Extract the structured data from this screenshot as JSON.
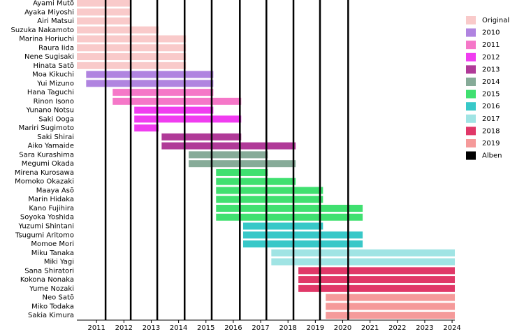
{
  "chart_data": {
    "type": "timeline",
    "xlim": [
      2010.28,
      2024.1
    ],
    "xticks": [
      2011,
      2012,
      2013,
      2014,
      2015,
      2016,
      2017,
      2018,
      2019,
      2020,
      2021,
      2022,
      2023,
      2024
    ],
    "series": [
      {
        "name": "Original",
        "color": "#f9caca",
        "categories": [
          "Ayami Mutō",
          "Ayaka Miyoshi",
          "Airi Matsui",
          "Suzuka Nakamoto",
          "Marina Horiuchi",
          "Raura Iida",
          "Nene Sugisaki",
          "Hinata Satō"
        ],
        "starts": [
          2010.28,
          2010.28,
          2010.28,
          2010.28,
          2010.28,
          2010.28,
          2010.28,
          2010.28
        ],
        "ends": [
          2012.25,
          2012.25,
          2012.25,
          2013.27,
          2014.27,
          2014.27,
          2014.27,
          2014.27
        ]
      },
      {
        "name": "2010",
        "color": "#b084e0",
        "categories": [
          "Moa Kikuchi",
          "Yui Mizuno"
        ],
        "starts": [
          2010.62,
          2010.62
        ],
        "ends": [
          2015.27,
          2015.27
        ]
      },
      {
        "name": "2011",
        "color": "#f577c8",
        "categories": [
          "Hana Taguchi",
          "Rinon Isono"
        ],
        "starts": [
          2011.59,
          2011.59
        ],
        "ends": [
          2015.27,
          2016.29
        ]
      },
      {
        "name": "2012",
        "color": "#f03df0",
        "categories": [
          "Yunano Notsu",
          "Saki Ooga",
          "Mariri Sugimoto"
        ],
        "starts": [
          2012.38,
          2012.38,
          2012.38
        ],
        "ends": [
          2015.27,
          2016.29,
          2013.27
        ]
      },
      {
        "name": "2013",
        "color": "#b03a98",
        "categories": [
          "Saki Shirai",
          "Aiko Yamaide"
        ],
        "starts": [
          2013.38,
          2013.38
        ],
        "ends": [
          2016.29,
          2018.28
        ]
      },
      {
        "name": "2014",
        "color": "#86ab98",
        "categories": [
          "Sara Kurashima",
          "Megumi Okada"
        ],
        "starts": [
          2014.37,
          2014.37
        ],
        "ends": [
          2017.26,
          2018.28
        ]
      },
      {
        "name": "2015",
        "color": "#40e070",
        "categories": [
          "Mirena Kurosawa",
          "Momoko Okazaki",
          "Maaya Asō",
          "Marin Hidaka",
          "Kano Fujihira",
          "Soyoka Yoshida"
        ],
        "starts": [
          2015.37,
          2015.37,
          2015.37,
          2015.37,
          2015.37,
          2015.37
        ],
        "ends": [
          2017.26,
          2018.28,
          2019.28,
          2019.28,
          2020.73,
          2020.73
        ]
      },
      {
        "name": "2016",
        "color": "#38c8c8",
        "categories": [
          "Yuzumi Shintani",
          "Tsugumi Aritomo",
          "Momoe Mori"
        ],
        "starts": [
          2016.36,
          2016.36,
          2016.36
        ],
        "ends": [
          2019.28,
          2020.73,
          2020.73
        ]
      },
      {
        "name": "2017",
        "color": "#a0e4e4",
        "categories": [
          "Miku Tanaka",
          "Miki Yagi"
        ],
        "starts": [
          2017.39,
          2017.39
        ],
        "ends": [
          2024.1,
          2024.1
        ]
      },
      {
        "name": "2018",
        "color": "#e03868",
        "categories": [
          "Sana Shiratori",
          "Kokona Nonaka",
          "Yume Nozaki"
        ],
        "starts": [
          2018.38,
          2018.38,
          2018.38
        ],
        "ends": [
          2024.1,
          2024.1,
          2024.1
        ]
      },
      {
        "name": "2019",
        "color": "#f59a9a",
        "categories": [
          "Neo Satō",
          "Miko Todaka",
          "Sakia Kimura"
        ],
        "starts": [
          2019.38,
          2019.38,
          2019.38
        ],
        "ends": [
          2024.1,
          2024.1,
          2024.1
        ]
      }
    ],
    "markers": {
      "name": "Alben",
      "color": "#000000",
      "values": [
        2011.33,
        2012.25,
        2013.22,
        2014.22,
        2015.21,
        2016.24,
        2017.21,
        2018.2,
        2019.17,
        2020.2
      ]
    }
  }
}
